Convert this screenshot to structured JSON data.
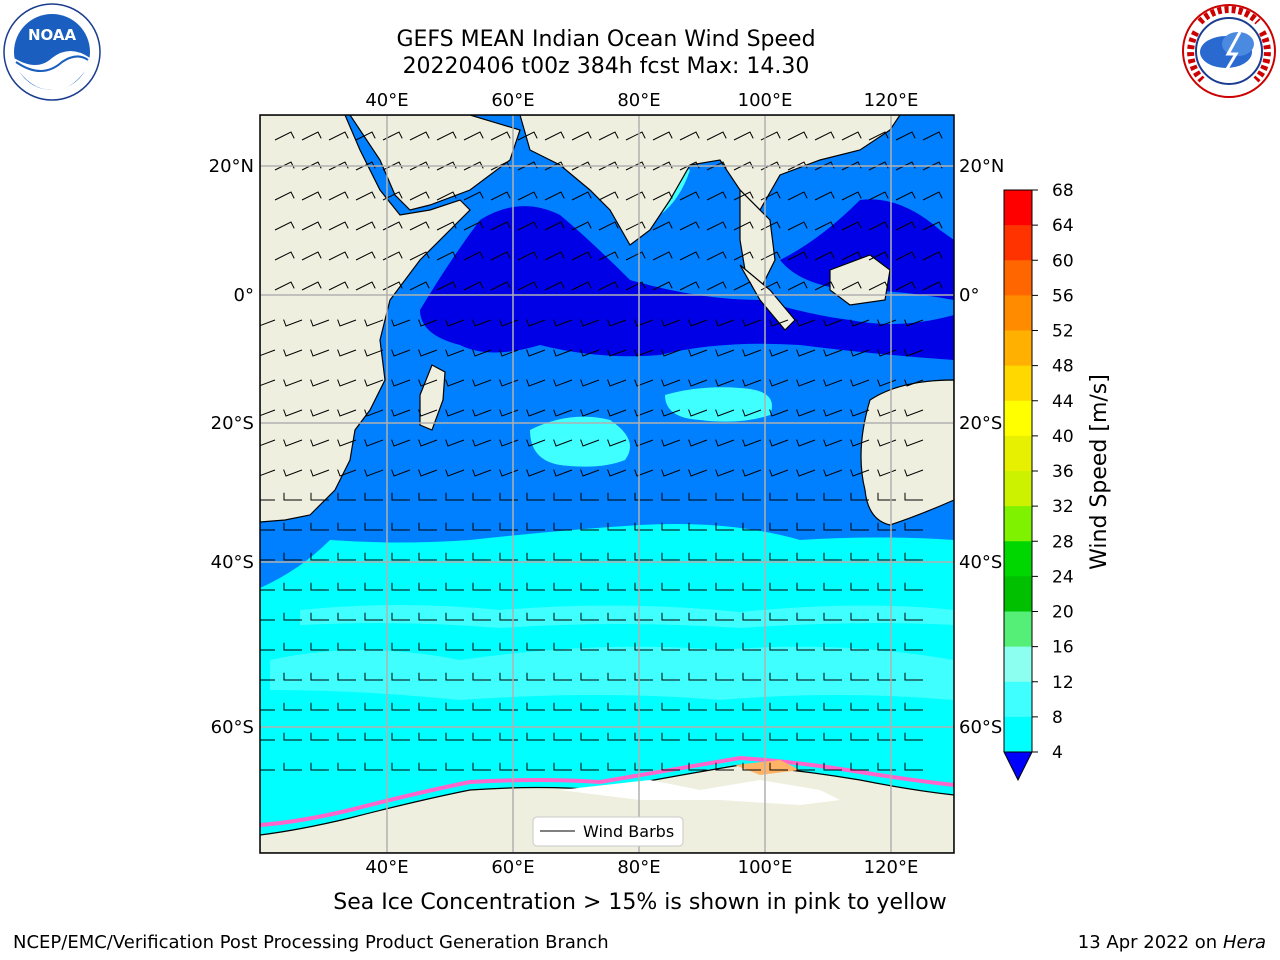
{
  "header": {
    "title_line1": "GEFS MEAN Indian Ocean Wind Speed",
    "title_line2": "20220406 t00z 384h fcst   Max: 14.30"
  },
  "logos": {
    "left": {
      "name": "noaa-logo",
      "text": "NOAA",
      "ring_text": "NATIONAL OCEANIC AND ATMOSPHERIC ADMINISTRATION · U.S. DEPARTMENT OF COMMERCE"
    },
    "right": {
      "name": "nws-logo",
      "ring_text": "NATIONAL WEATHER SERVICE"
    }
  },
  "map": {
    "lon_labels": [
      "40°E",
      "60°E",
      "80°E",
      "100°E",
      "120°E"
    ],
    "lat_labels": [
      "20°N",
      "0°",
      "20°S",
      "40°S",
      "60°S"
    ],
    "legend_label": "Wind Barbs",
    "land_color": "#efefdf",
    "ice_colors": [
      "#ff66cc",
      "#ffb366",
      "#ffe066",
      "#ffffff"
    ]
  },
  "colorbar": {
    "label": "Wind Speed [m/s]",
    "ticks": [
      "68",
      "64",
      "60",
      "56",
      "52",
      "48",
      "44",
      "40",
      "36",
      "32",
      "28",
      "24",
      "20",
      "16",
      "12",
      "8",
      "4"
    ],
    "colors": [
      "#ff0000",
      "#ff3300",
      "#ff6600",
      "#ff8c00",
      "#ffb000",
      "#ffd800",
      "#ffff00",
      "#e6f000",
      "#ccf200",
      "#7ff200",
      "#00d600",
      "#00c000",
      "#55ee77",
      "#8cfff0",
      "#40ffff",
      "#00ffff",
      "#0080ff"
    ],
    "under_color": "#0000ff"
  },
  "chart_data": {
    "type": "heatmap",
    "title": "GEFS MEAN Indian Ocean Wind Speed",
    "subtitle": "20220406 t00z 384h fcst   Max: 14.30",
    "max_value": 14.3,
    "units": "m/s",
    "colorbar_levels": [
      4,
      8,
      12,
      16,
      20,
      24,
      28,
      32,
      36,
      40,
      44,
      48,
      52,
      56,
      60,
      64,
      68
    ],
    "lon_range": [
      20,
      130
    ],
    "lat_range": [
      -75,
      28
    ]
  },
  "footer": {
    "caption": "Sea Ice Concentration > 15% is shown in pink to yellow",
    "left": "NCEP/EMC/Verification Post Processing Product Generation Branch",
    "right_date": "13 Apr 2022 on ",
    "right_host": "Hera"
  }
}
